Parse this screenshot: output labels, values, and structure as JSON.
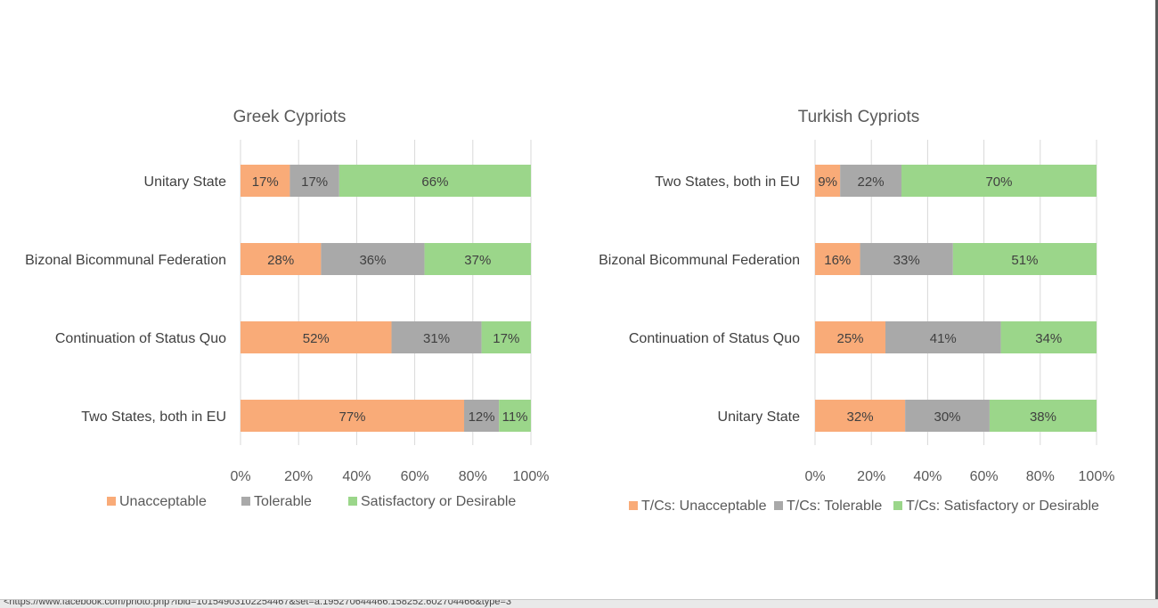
{
  "chart_data": [
    {
      "type": "bar",
      "orientation": "horizontal",
      "stacked": true,
      "title": "Greek Cypriots",
      "categories": [
        "Unitary State",
        "Bizonal Bicommunal Federation",
        "Continuation of Status Quo",
        "Two States, both in EU"
      ],
      "series": [
        {
          "name": "Unacceptable",
          "values": [
            17,
            28,
            52,
            77
          ],
          "labels": [
            "17%",
            "28%",
            "52%",
            "77%"
          ],
          "color": "#f9ab78"
        },
        {
          "name": "Tolerable",
          "values": [
            17,
            36,
            31,
            12
          ],
          "labels": [
            "17%",
            "36%",
            "31%",
            "12%"
          ],
          "color": "#a9a9a9"
        },
        {
          "name": "Satisfactory or Desirable",
          "values": [
            66,
            37,
            17,
            11
          ],
          "labels": [
            "66%",
            "37%",
            "17%",
            "11%"
          ],
          "color": "#9bd68a"
        }
      ],
      "xlim": [
        0,
        100
      ],
      "xticks": [
        "0%",
        "20%",
        "40%",
        "60%",
        "80%",
        "100%"
      ],
      "grid": true,
      "legend": "bottom"
    },
    {
      "type": "bar",
      "orientation": "horizontal",
      "stacked": true,
      "title": "Turkish Cypriots",
      "categories": [
        "Two States, both in EU",
        "Bizonal Bicommunal Federation",
        "Continuation of Status Quo",
        "Unitary State"
      ],
      "series": [
        {
          "name": "T/Cs: Unacceptable",
          "values": [
            9,
            16,
            25,
            32
          ],
          "labels": [
            "9%",
            "16%",
            "25%",
            "32%"
          ],
          "color": "#f9ab78"
        },
        {
          "name": "T/Cs: Tolerable",
          "values": [
            22,
            33,
            41,
            30
          ],
          "labels": [
            "22%",
            "33%",
            "41%",
            "30%"
          ],
          "color": "#a9a9a9"
        },
        {
          "name": "T/Cs: Satisfactory or Desirable",
          "values": [
            70,
            51,
            34,
            38
          ],
          "labels": [
            "70%",
            "51%",
            "34%",
            "38%"
          ],
          "color": "#9bd68a"
        }
      ],
      "xlim": [
        0,
        100
      ],
      "xticks": [
        "0%",
        "20%",
        "40%",
        "60%",
        "80%",
        "100%"
      ],
      "grid": true,
      "legend": "bottom"
    }
  ],
  "status_bar": {
    "url": "<https://www.facebook.com/photo.php?fbid=10154903102254467&set=a.195270644466.158252.602704466&type=3"
  }
}
